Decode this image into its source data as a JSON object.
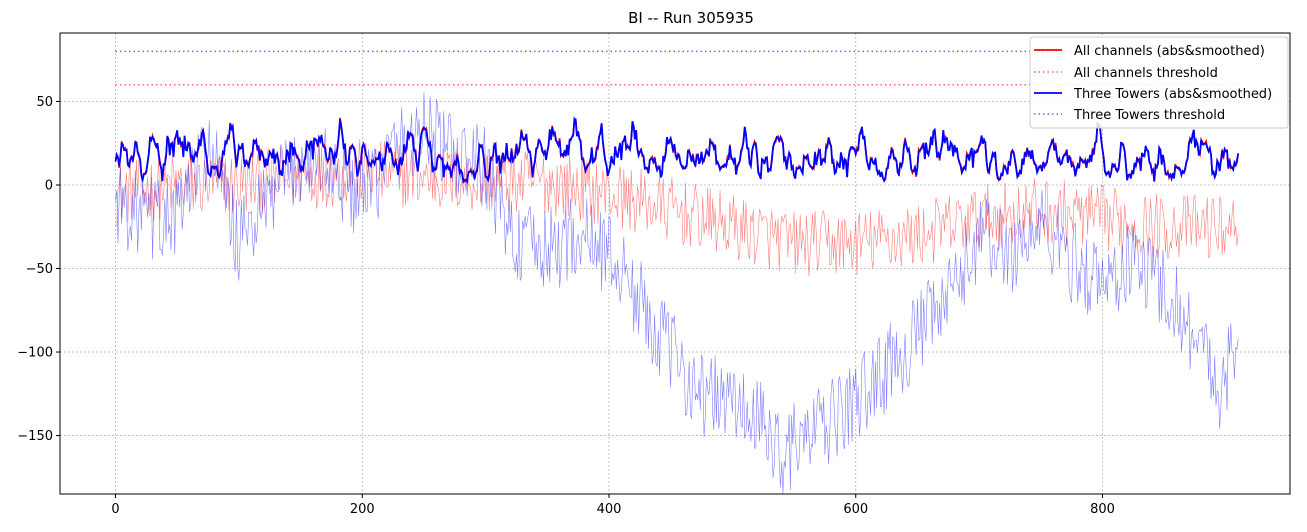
{
  "chart_data": {
    "type": "line",
    "title": "BI -- Run 305935",
    "xlabel": "",
    "ylabel": "",
    "xlim": [
      -45,
      952
    ],
    "ylim": [
      -185,
      91
    ],
    "xticks": [
      0,
      200,
      400,
      600,
      800
    ],
    "yticks": [
      50,
      0,
      -50,
      -100,
      -150
    ],
    "grid": true,
    "legend_position": "top-right",
    "colors": {
      "red": "#ff0000",
      "blue": "#0000ff"
    },
    "series": [
      {
        "name": "All channels (abs&smoothed)",
        "color": "#ff0000",
        "style": "solid",
        "x_range": [
          0,
          910
        ],
        "approx_values": "fluctuates 2-33, mean ~12"
      },
      {
        "name": "All channels threshold",
        "color": "#ff0000",
        "style": "dotted",
        "value": 60,
        "x_range": [
          0,
          910
        ]
      },
      {
        "name": "Three Towers (abs&smoothed)",
        "color": "#0000ff",
        "style": "solid",
        "x_range": [
          0,
          910
        ],
        "approx_values": "fluctuates 2-47, mean ~12"
      },
      {
        "name": "Three Towers threshold",
        "color": "#0000ff",
        "style": "dotted",
        "value": 80,
        "x_range": [
          0,
          910
        ]
      }
    ],
    "raw_signals": [
      {
        "color": "#ff0000",
        "style": "thin",
        "x": [
          0,
          50,
          100,
          150,
          200,
          250,
          300,
          350,
          400,
          450,
          500,
          550,
          600,
          650,
          700,
          750,
          800,
          850,
          910
        ],
        "y": [
          -5,
          0,
          0,
          5,
          8,
          5,
          2,
          2,
          -5,
          -15,
          -25,
          -35,
          -35,
          -30,
          -20,
          -15,
          -20,
          -25,
          -25
        ]
      },
      {
        "color": "#0000ff",
        "style": "thin",
        "x": [
          0,
          25,
          50,
          75,
          100,
          125,
          150,
          175,
          200,
          225,
          250,
          275,
          300,
          325,
          350,
          375,
          400,
          425,
          450,
          475,
          500,
          525,
          540,
          575,
          600,
          625,
          650,
          675,
          700,
          725,
          750,
          775,
          800,
          825,
          850,
          875,
          895,
          910
        ],
        "y": [
          -10,
          -20,
          -20,
          25,
          -35,
          -10,
          15,
          10,
          -10,
          20,
          35,
          15,
          10,
          -35,
          -40,
          -30,
          -40,
          -70,
          -100,
          -125,
          -130,
          -145,
          -160,
          -145,
          -130,
          -110,
          -90,
          -70,
          -30,
          -40,
          -25,
          -45,
          -60,
          -45,
          -60,
          -90,
          -120,
          -95
        ]
      }
    ]
  }
}
